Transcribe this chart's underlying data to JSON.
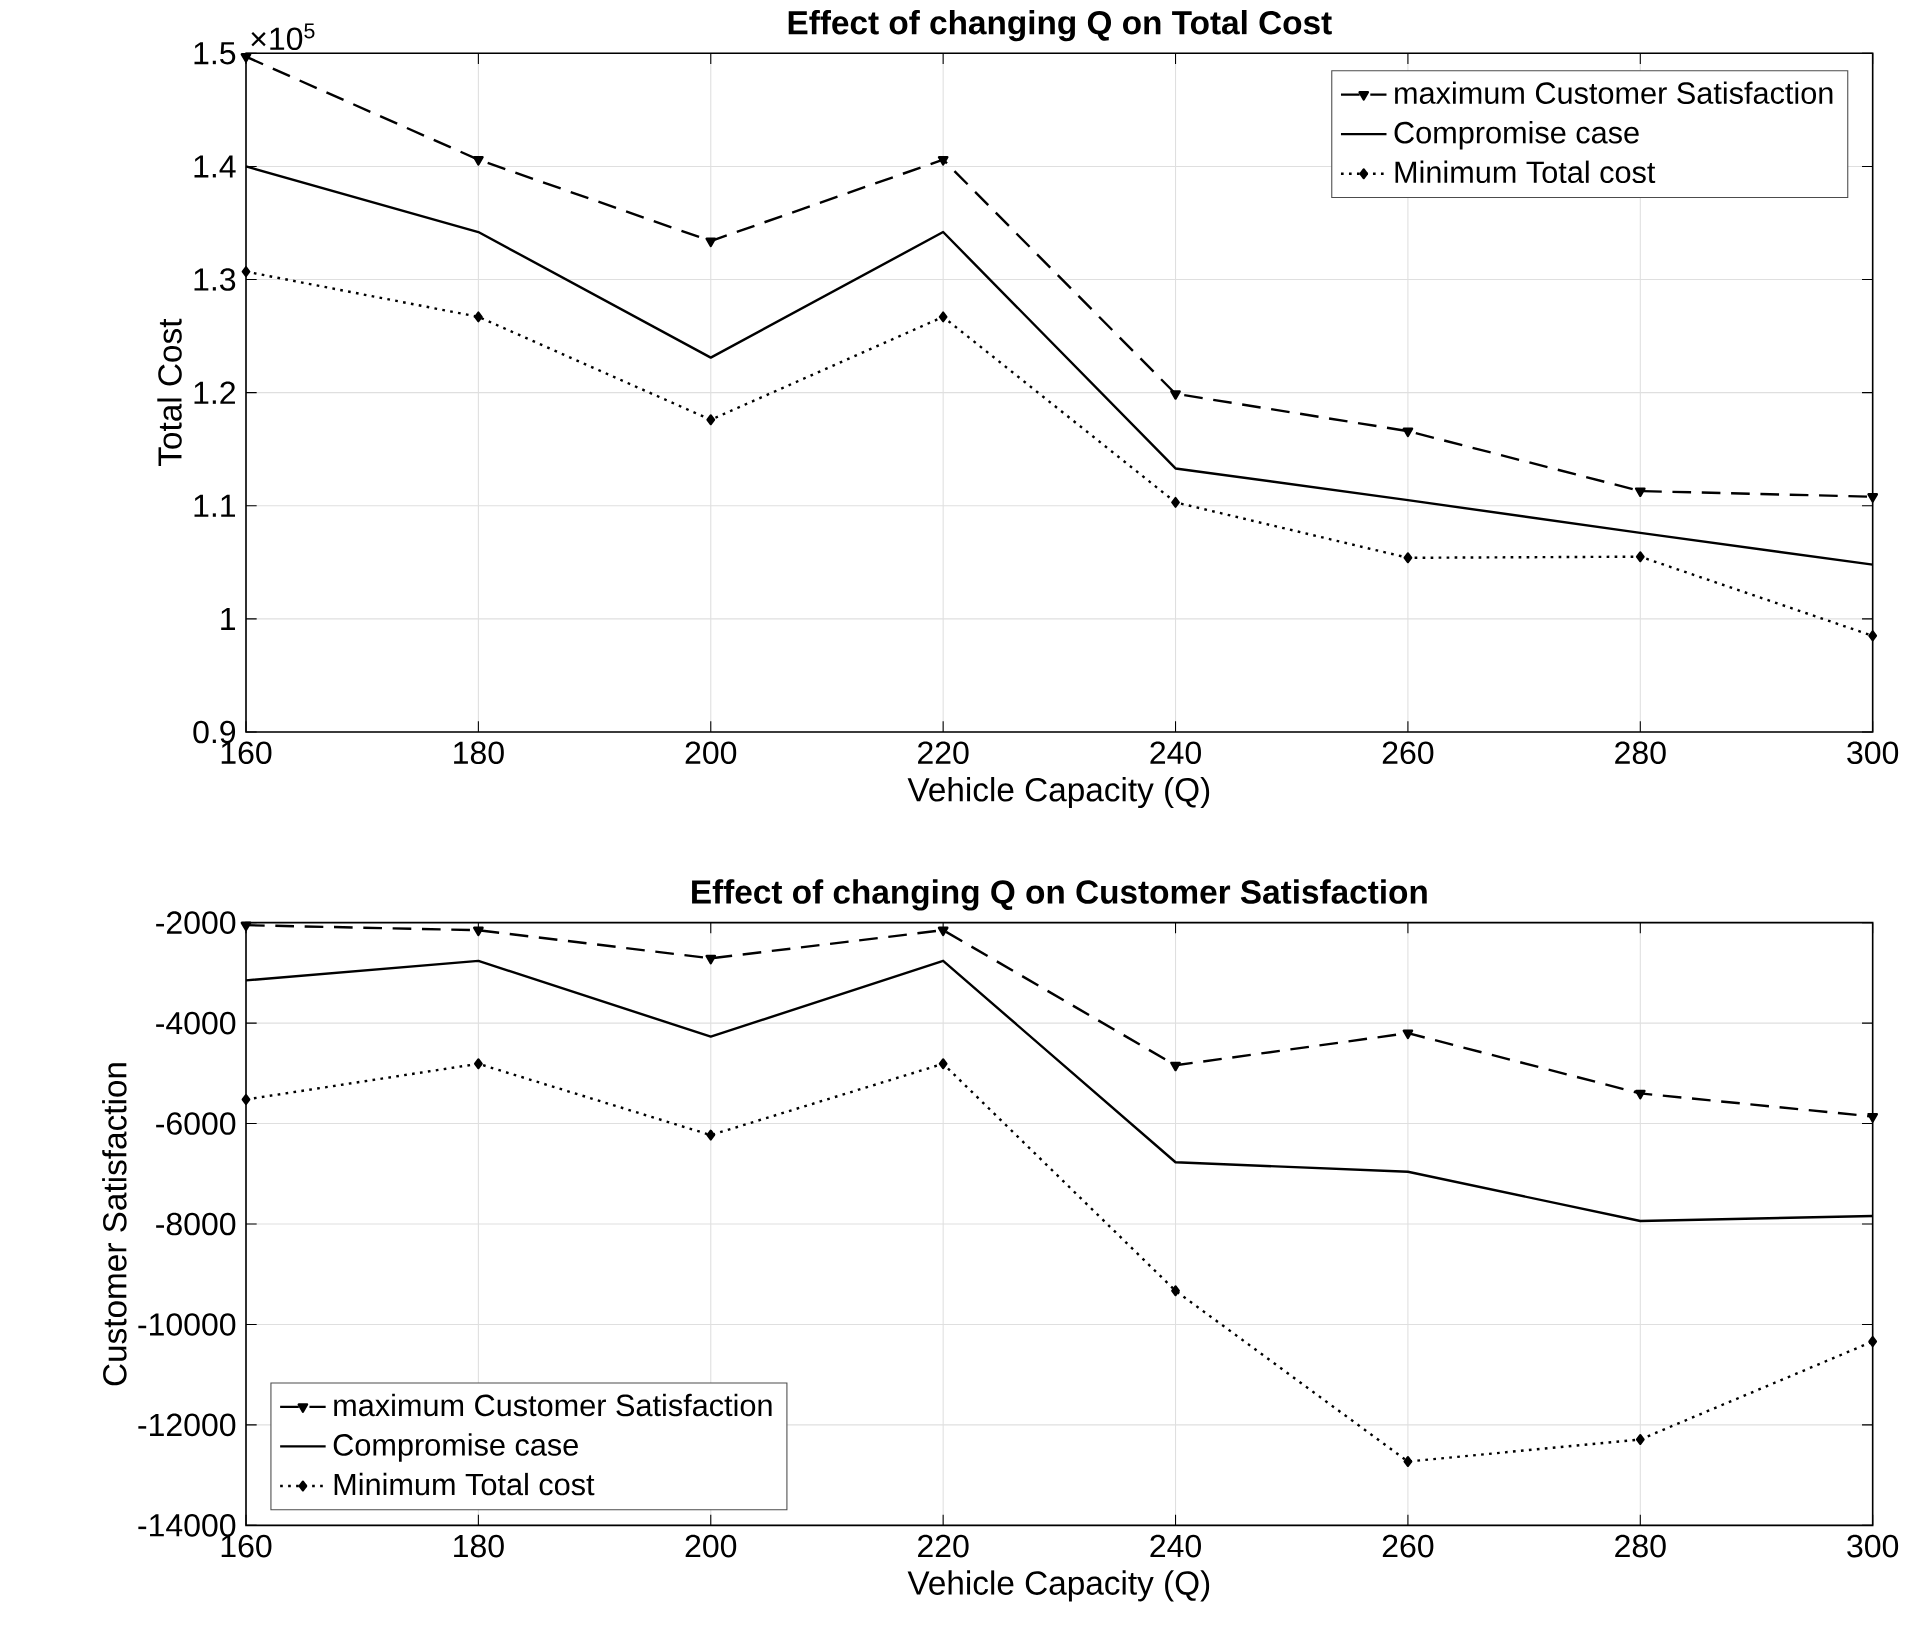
{
  "chart_data": [
    {
      "type": "line",
      "title": "Effect of changing Q on Total Cost",
      "xlabel": "Vehicle Capacity (Q)",
      "ylabel": "Total Cost",
      "annotations": [
        "×10$^{5}$"
      ],
      "x": [
        160,
        180,
        200,
        220,
        240,
        260,
        280,
        300
      ],
      "xlim": [
        160,
        300
      ],
      "xticks": [
        160,
        180,
        200,
        220,
        240,
        260,
        280,
        300
      ],
      "ylim": [
        0.9,
        1.5
      ],
      "yticks": [
        0.9,
        1,
        1.1,
        1.2,
        1.3,
        1.4,
        1.5
      ],
      "grid": true,
      "legend": "top right",
      "series": [
        {
          "name": "maximum Customer Satisfaction",
          "color": "#000000",
          "line_style": "dashed",
          "marker": "triangle",
          "values": [
            1.497,
            1.406,
            1.334,
            1.406,
            1.199,
            1.166,
            1.113,
            1.108
          ]
        },
        {
          "name": "Compromise case",
          "color": "#000000",
          "line_style": "solid",
          "marker": "none",
          "values": [
            1.4,
            1.342,
            1.231,
            1.342,
            1.133,
            1.105,
            1.076,
            1.048
          ]
        },
        {
          "name": "Minimum Total cost",
          "color": "#000000",
          "line_style": "dotted",
          "marker": "diamond",
          "values": [
            1.307,
            1.267,
            1.176,
            1.267,
            1.103,
            1.054,
            1.055,
            0.985
          ]
        }
      ]
    },
    {
      "type": "line",
      "title": "Effect of changing Q on Customer Satisfaction",
      "xlabel": "Vehicle Capacity (Q)",
      "ylabel": "Customer Satisfaction",
      "x": [
        160,
        180,
        200,
        220,
        240,
        260,
        280,
        300
      ],
      "xlim": [
        160,
        300
      ],
      "xticks": [
        160,
        180,
        200,
        220,
        240,
        260,
        280,
        300
      ],
      "ylim": [
        -14000,
        -2000
      ],
      "yticks": [
        -14000,
        -12000,
        -10000,
        -8000,
        -6000,
        -4000,
        -2000
      ],
      "grid": true,
      "legend": "bottom left",
      "series": [
        {
          "name": "maximum Customer Satisfaction",
          "color": "#000000",
          "line_style": "dashed",
          "marker": "triangle",
          "values": [
            -2050,
            -2150,
            -2710,
            -2150,
            -4840,
            -4200,
            -5400,
            -5860
          ]
        },
        {
          "name": "Compromise case",
          "color": "#000000",
          "line_style": "solid",
          "marker": "none",
          "values": [
            -3150,
            -2760,
            -4270,
            -2760,
            -6770,
            -6960,
            -7940,
            -7840
          ]
        },
        {
          "name": "Minimum Total cost",
          "color": "#000000",
          "line_style": "dotted",
          "marker": "diamond",
          "values": [
            -5520,
            -4810,
            -6230,
            -4810,
            -9330,
            -12730,
            -12290,
            -10340
          ]
        }
      ]
    }
  ]
}
